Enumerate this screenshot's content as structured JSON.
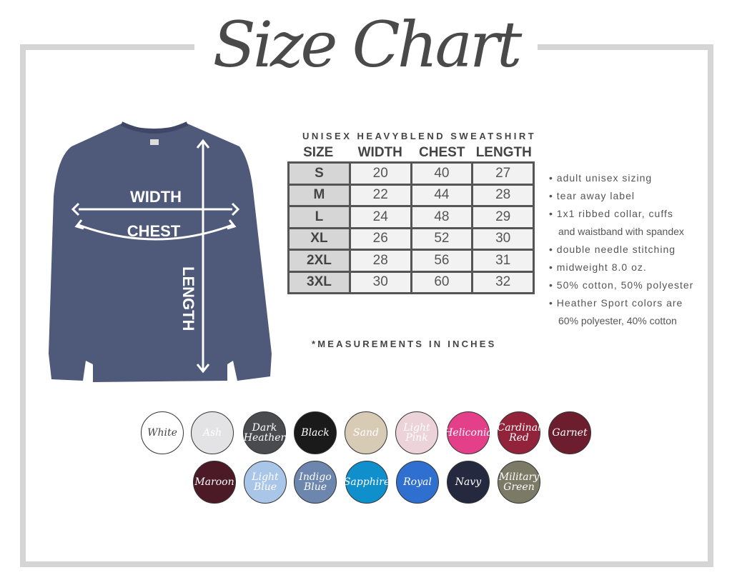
{
  "title": "Size Chart",
  "diagram": {
    "width_label": "WIDTH",
    "chest_label": "CHEST",
    "length_label": "LENGTH",
    "garment_color": "#4f5a7a"
  },
  "table": {
    "subtitle": "UNISEX HEAVYBLEND SWEATSHIRT",
    "headers": [
      "SIZE",
      "WIDTH",
      "CHEST",
      "LENGTH"
    ],
    "rows": [
      [
        "S",
        "20",
        "40",
        "27"
      ],
      [
        "M",
        "22",
        "44",
        "28"
      ],
      [
        "L",
        "24",
        "48",
        "29"
      ],
      [
        "XL",
        "26",
        "52",
        "30"
      ],
      [
        "2XL",
        "28",
        "56",
        "31"
      ],
      [
        "3XL",
        "30",
        "60",
        "32"
      ]
    ]
  },
  "features": [
    "adult unisex sizing",
    "tear away label",
    "1x1 ribbed collar, cuffs",
    "and waistband with spandex",
    "double needle stitching",
    "midweight 8.0 oz.",
    "50% cotton, 50% polyester",
    "Heather Sport colors are",
    "60% polyester, 40% cotton"
  ],
  "note": "*MEASUREMENTS IN INCHES",
  "colors": [
    {
      "name": "White",
      "hex": "#ffffff"
    },
    {
      "name": "Ash",
      "hex": "#e3e3e6"
    },
    {
      "name": "Dark Heather",
      "hex": "#4a4b4f"
    },
    {
      "name": "Black",
      "hex": "#1a1a1a"
    },
    {
      "name": "Sand",
      "hex": "#d8cbb6"
    },
    {
      "name": "Light Pink",
      "hex": "#ebd3d9"
    },
    {
      "name": "Heliconia",
      "hex": "#e4408a"
    },
    {
      "name": "Cardinal Red",
      "hex": "#92233a"
    },
    {
      "name": "Garnet",
      "hex": "#6d1e2e"
    },
    {
      "name": "Maroon",
      "hex": "#4b1a26"
    },
    {
      "name": "Light Blue",
      "hex": "#a9c6e8"
    },
    {
      "name": "Indigo Blue",
      "hex": "#6d86ad"
    },
    {
      "name": "Sapphire",
      "hex": "#0f8fcc"
    },
    {
      "name": "Royal",
      "hex": "#2f6fcf"
    },
    {
      "name": "Navy",
      "hex": "#24293f"
    },
    {
      "name": "Military Green",
      "hex": "#7b7a66"
    }
  ]
}
